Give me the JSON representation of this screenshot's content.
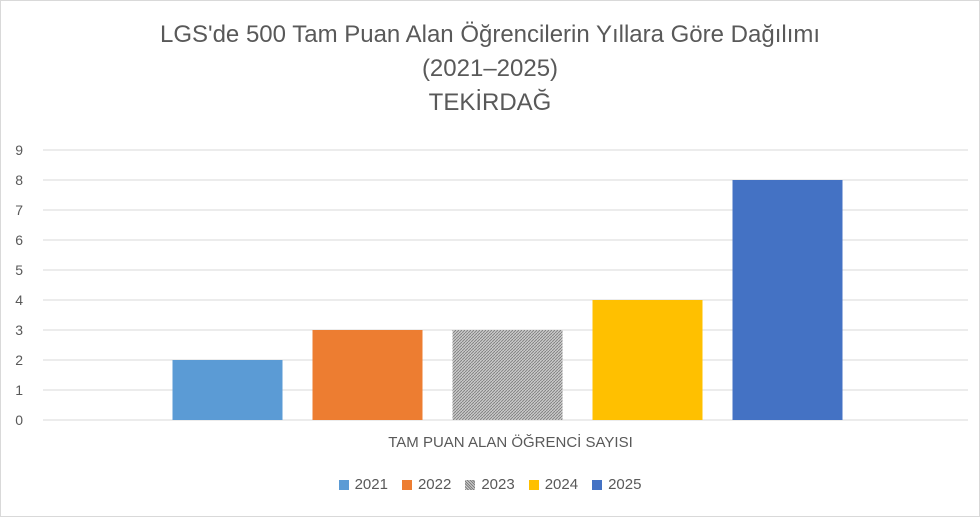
{
  "chart_data": {
    "type": "bar",
    "title": [
      "LGS'de 500 Tam Puan Alan Öğrencilerin Yıllara Göre Dağılımı",
      "(2021–2025)",
      "TEKİRDAĞ"
    ],
    "categories": [
      "TAM PUAN ALAN ÖĞRENCİ SAYISI"
    ],
    "xlabel": "",
    "ylabel": "",
    "ylim": [
      0,
      9
    ],
    "yticks": [
      "0",
      "1",
      "2",
      "3",
      "4",
      "5",
      "6",
      "7",
      "8",
      "9"
    ],
    "grid": true,
    "legend_position": "bottom",
    "series": [
      {
        "name": "2021",
        "values": [
          2
        ],
        "color": "#5b9bd5"
      },
      {
        "name": "2022",
        "values": [
          3
        ],
        "color": "#ed7d31"
      },
      {
        "name": "2023",
        "values": [
          3
        ],
        "color": "#a5a5a5",
        "pattern": true
      },
      {
        "name": "2024",
        "values": [
          4
        ],
        "color": "#ffc000"
      },
      {
        "name": "2025",
        "values": [
          8
        ],
        "color": "#4472c4"
      }
    ]
  }
}
